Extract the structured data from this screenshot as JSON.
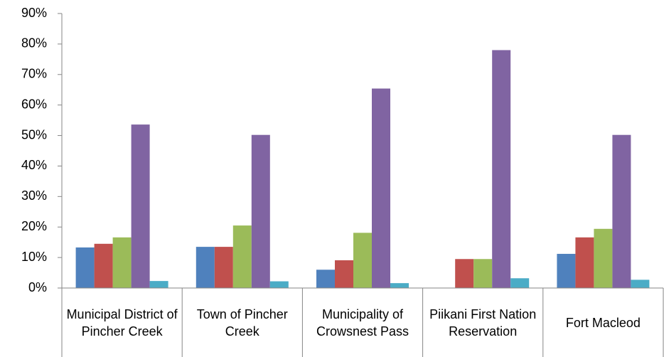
{
  "chart_data": {
    "type": "bar",
    "categories": [
      "Municipal District of Pincher Creek",
      "Town of Pincher Creek",
      "Municipality of Crowsnest Pass",
      "Piikani First Nation Reservation",
      "Fort Macleod"
    ],
    "series": [
      {
        "color": "#4f81bd",
        "values": [
          13.3,
          13.5,
          6.0,
          0,
          11.2
        ]
      },
      {
        "color": "#c0504d",
        "values": [
          14.5,
          13.5,
          9.1,
          9.5,
          16.6
        ]
      },
      {
        "color": "#9bbb59",
        "values": [
          16.6,
          20.5,
          18.1,
          9.5,
          19.4
        ]
      },
      {
        "color": "#8064a2",
        "values": [
          53.6,
          50.2,
          65.4,
          78.0,
          50.2
        ]
      },
      {
        "color": "#4bacc6",
        "values": [
          2.3,
          2.2,
          1.6,
          3.2,
          2.7
        ]
      }
    ],
    "ylim": [
      0,
      90
    ],
    "yticks": [
      {
        "value": 0,
        "label": "0%"
      },
      {
        "value": 10,
        "label": "10%"
      },
      {
        "value": 20,
        "label": "20%"
      },
      {
        "value": 30,
        "label": "30%"
      },
      {
        "value": 40,
        "label": "40%"
      },
      {
        "value": 50,
        "label": "50%"
      },
      {
        "value": 60,
        "label": "60%"
      },
      {
        "value": 70,
        "label": "70%"
      },
      {
        "value": 80,
        "label": "80%"
      },
      {
        "value": 90,
        "label": "90%"
      }
    ],
    "grid": false
  }
}
